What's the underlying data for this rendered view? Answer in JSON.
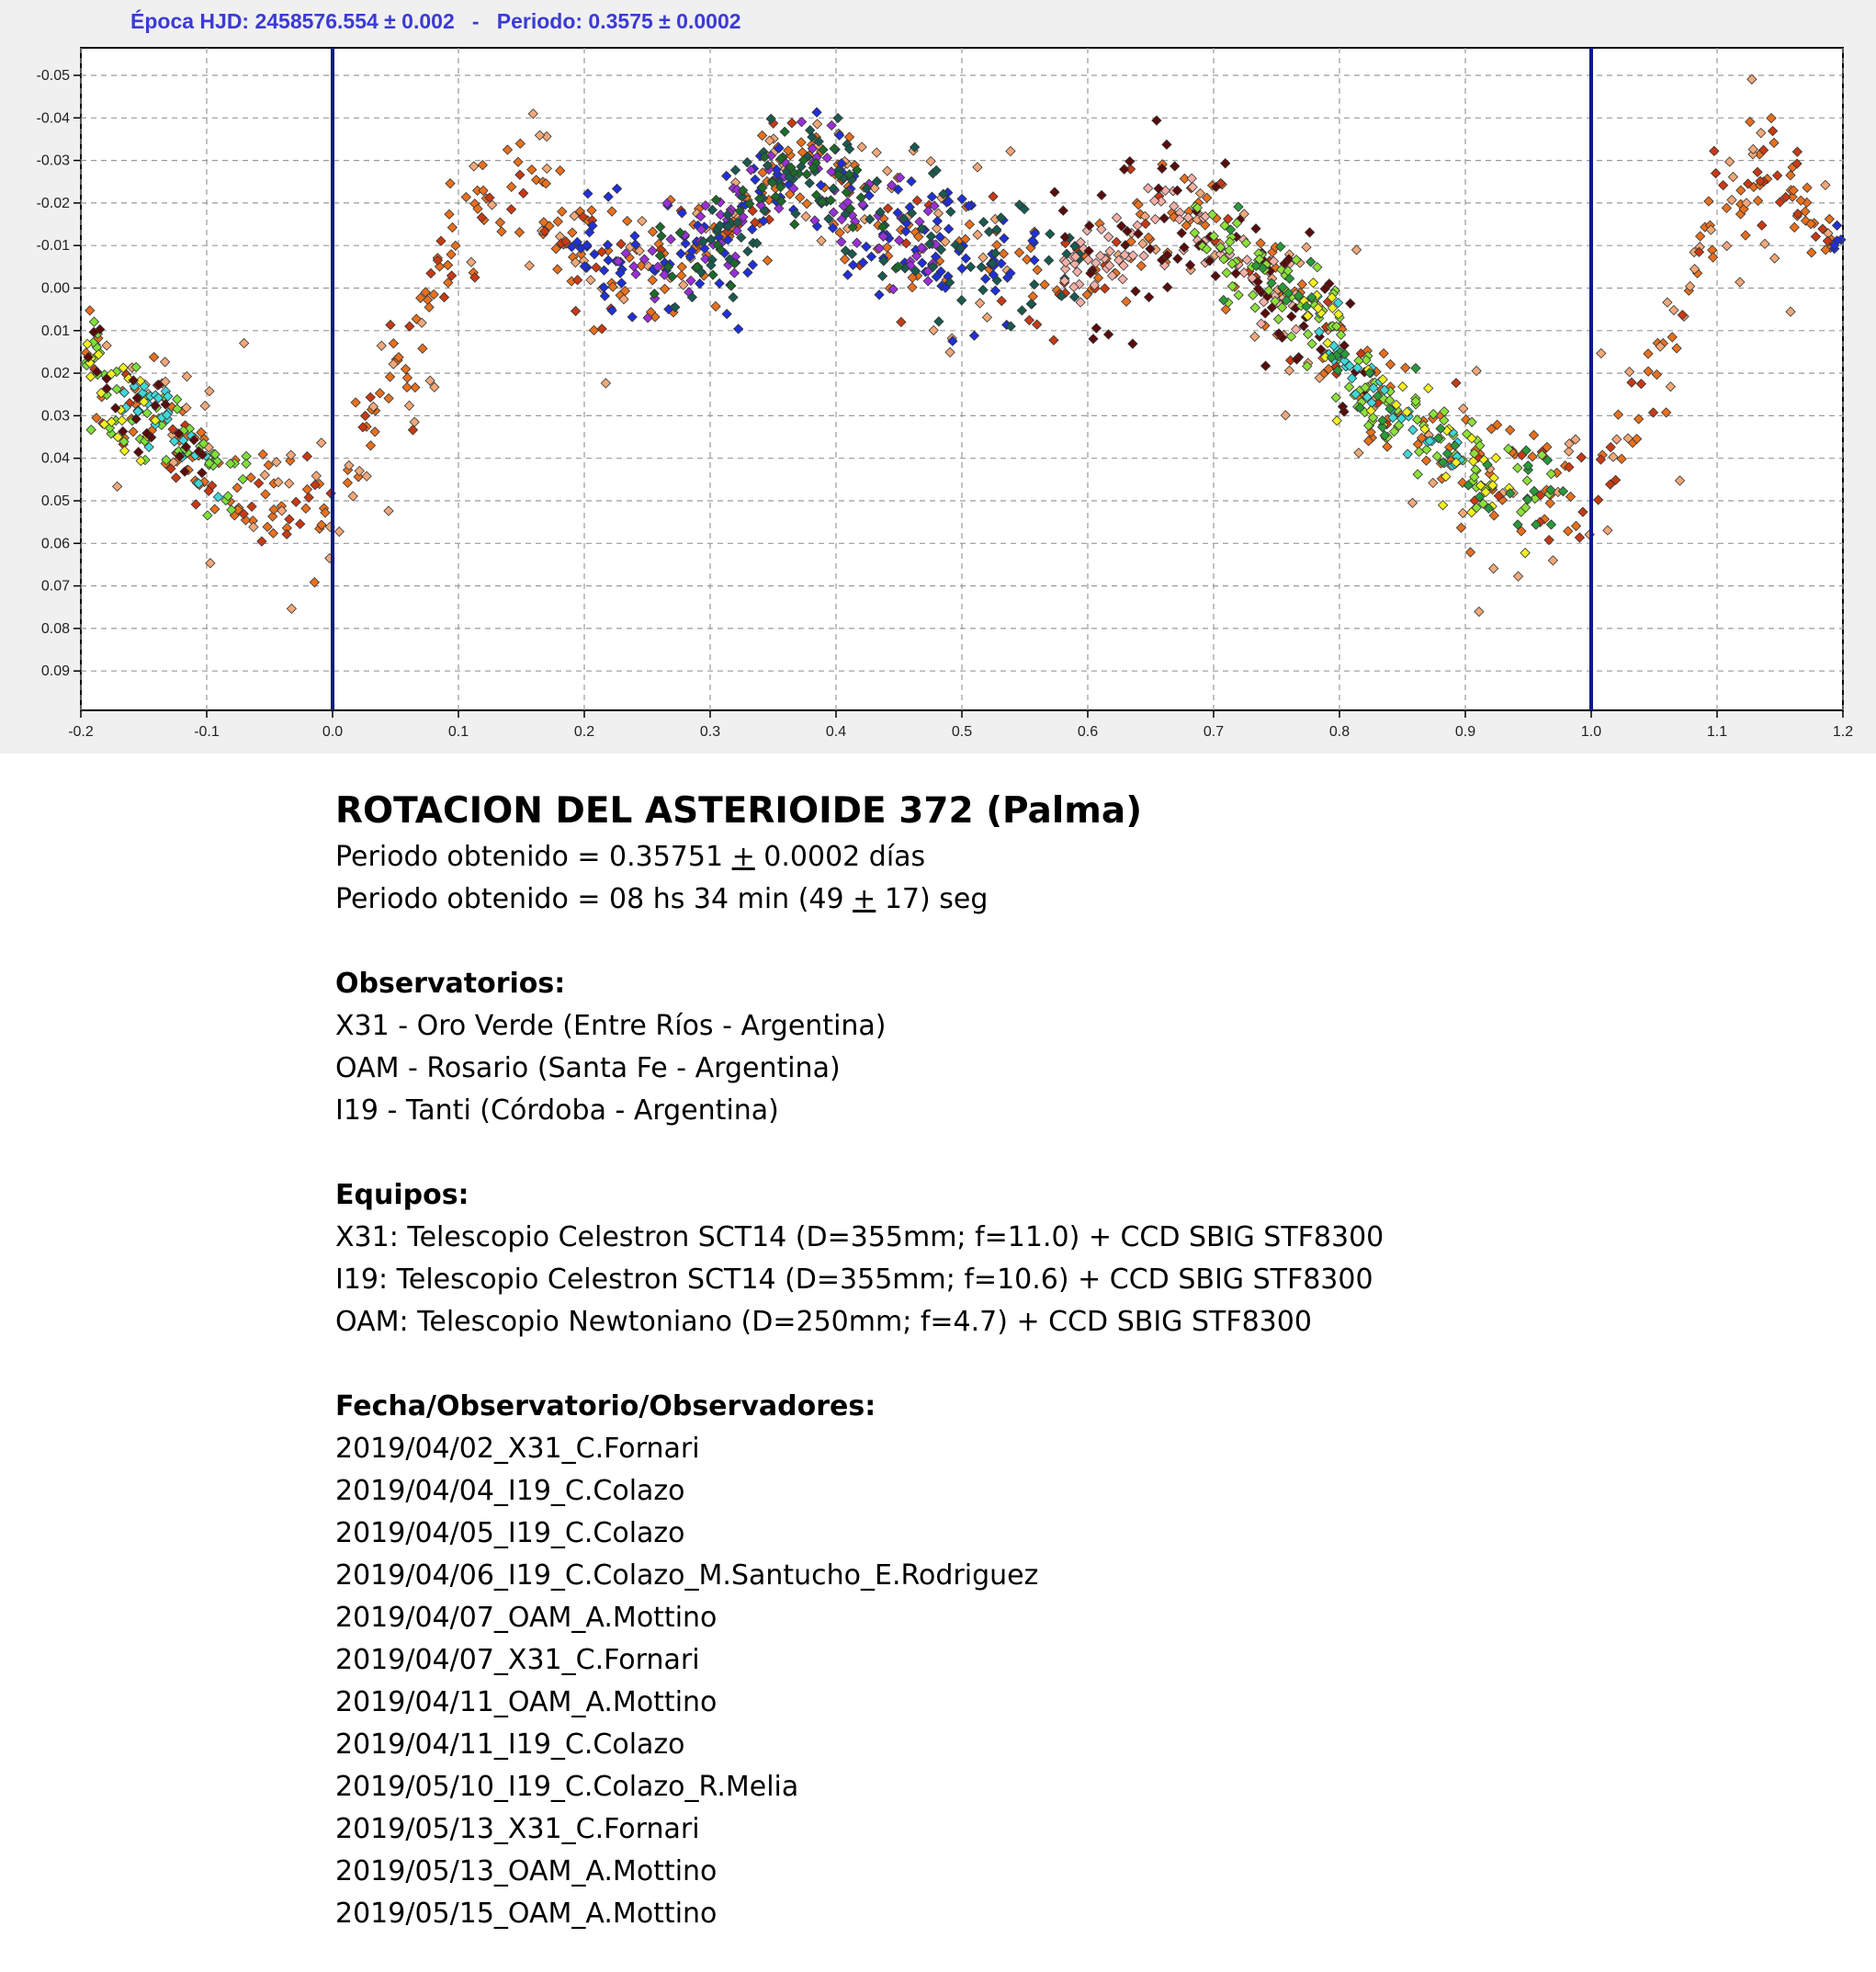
{
  "chart_header": {
    "epoch_label": "Época HJD: 2458576.554 ± 0.002",
    "separator": "-",
    "period_label": "Periodo: 0.3575 ± 0.0002"
  },
  "chart_data": {
    "type": "scatter",
    "title": "",
    "xlabel": "",
    "ylabel": "",
    "xlim": [
      -0.2,
      1.2
    ],
    "ylim": [
      -0.055,
      0.1
    ],
    "y_inverted": true,
    "grid": true,
    "x_ticks": [
      "-0.2",
      "-0.1",
      "0.0",
      "0.1",
      "0.2",
      "0.3",
      "0.4",
      "0.5",
      "0.6",
      "0.7",
      "0.8",
      "0.9",
      "1.0",
      "1.1",
      "1.2"
    ],
    "y_ticks": [
      "-0.05",
      "-0.04",
      "-0.03",
      "-0.02",
      "-0.01",
      "0.00",
      "0.01",
      "0.02",
      "0.03",
      "0.04",
      "0.05",
      "0.06",
      "0.07",
      "0.08",
      "0.09"
    ],
    "vertical_markers": [
      0.0,
      1.0
    ],
    "marker_color": "#0a1a8c",
    "light_curve_shape": {
      "phase": [
        0.0,
        0.05,
        0.1,
        0.14,
        0.2,
        0.25,
        0.3,
        0.37,
        0.45,
        0.55,
        0.6,
        0.67,
        0.75,
        0.85,
        0.92,
        1.0
      ],
      "magnitude": [
        0.05,
        0.02,
        -0.015,
        -0.025,
        -0.008,
        -0.005,
        -0.01,
        -0.028,
        -0.012,
        -0.005,
        -0.005,
        -0.018,
        0.0,
        0.03,
        0.045,
        0.05
      ]
    },
    "series": [
      {
        "color": "#e8701e",
        "range": [
          -0.2,
          1.2
        ],
        "count": 420,
        "spread": 0.007
      },
      {
        "color": "#f2a878",
        "range": [
          -0.2,
          1.2
        ],
        "count": 200,
        "spread": 0.014
      },
      {
        "color": "#c83a14",
        "range": [
          -0.2,
          1.2
        ],
        "count": 150,
        "spread": 0.008
      },
      {
        "color": "#2030d8",
        "range": [
          0.19,
          0.56
        ],
        "count": 150,
        "spread": 0.008
      },
      {
        "color": "#9a30d8",
        "range": [
          0.22,
          0.48
        ],
        "count": 90,
        "spread": 0.006
      },
      {
        "color": "#1a5a50",
        "range": [
          0.26,
          0.6
        ],
        "count": 110,
        "spread": 0.008
      },
      {
        "color": "#1c6a2a",
        "range": [
          0.25,
          0.45
        ],
        "count": 50,
        "spread": 0.006
      },
      {
        "color": "#f4b0a8",
        "range": [
          0.58,
          0.78
        ],
        "count": 80,
        "spread": 0.005
      },
      {
        "color": "#5a0c0c",
        "range": [
          0.57,
          0.82
        ],
        "count": 80,
        "spread": 0.01
      },
      {
        "color": "#8ee03a",
        "range": [
          0.68,
          0.97
        ],
        "count": 130,
        "spread": 0.006
      },
      {
        "color": "#40d8d8",
        "range": [
          0.78,
          0.9
        ],
        "count": 40,
        "spread": 0.004
      },
      {
        "color": "#f2f020",
        "range": [
          0.75,
          0.95
        ],
        "count": 40,
        "spread": 0.007
      },
      {
        "color": "#2a9a3a",
        "range": [
          0.7,
          0.98
        ],
        "count": 50,
        "spread": 0.006
      },
      {
        "color": "#7ee03a",
        "range": [
          -0.2,
          -0.06
        ],
        "count": 60,
        "spread": 0.005
      },
      {
        "color": "#40d8d8",
        "range": [
          -0.17,
          -0.09
        ],
        "count": 30,
        "spread": 0.004
      },
      {
        "color": "#f2f020",
        "range": [
          -0.2,
          -0.14
        ],
        "count": 20,
        "spread": 0.006
      },
      {
        "color": "#5a0c0c",
        "range": [
          -0.2,
          -0.1
        ],
        "count": 25,
        "spread": 0.006
      },
      {
        "color": "#2030d8",
        "range": [
          1.19,
          1.2
        ],
        "count": 6,
        "spread": 0.008
      }
    ]
  },
  "report": {
    "title": "ROTACION DEL ASTERIOIDE 372 (Palma)",
    "period_days_pre": "Periodo obtenido = 0.35751 ",
    "pm": "+",
    "period_days_post": " 0.0002 días",
    "period_hms_pre": "Periodo obtenido = 08 hs 34 min (49 ",
    "period_hms_post": " 17) seg",
    "observatories_heading": "Observatorios:",
    "observatories": [
      "X31 - Oro Verde (Entre Ríos - Argentina)",
      "OAM - Rosario (Santa Fe - Argentina)",
      "I19 - Tanti (Córdoba - Argentina)"
    ],
    "equipment_heading": "Equipos:",
    "equipment": [
      "X31: Telescopio Celestron SCT14 (D=355mm; f=11.0) + CCD SBIG STF8300",
      "I19: Telescopio Celestron SCT14 (D=355mm; f=10.6) + CCD SBIG STF8300",
      "OAM: Telescopio Newtoniano (D=250mm; f=4.7) + CCD SBIG STF8300"
    ],
    "sessions_heading": "Fecha/Observatorio/Observadores:",
    "sessions": [
      "2019/04/02_X31_C.Fornari",
      "2019/04/04_I19_C.Colazo",
      "2019/04/05_I19_C.Colazo",
      "2019/04/06_I19_C.Colazo_M.Santucho_E.Rodriguez",
      "2019/04/07_OAM_A.Mottino",
      "2019/04/07_X31_C.Fornari",
      "2019/04/11_OAM_A.Mottino",
      "2019/04/11_I19_C.Colazo",
      "2019/05/10_I19_C.Colazo_R.Melia",
      "2019/05/13_X31_C.Fornari",
      "2019/05/13_OAM_A.Mottino",
      "2019/05/15_OAM_A.Mottino"
    ]
  }
}
